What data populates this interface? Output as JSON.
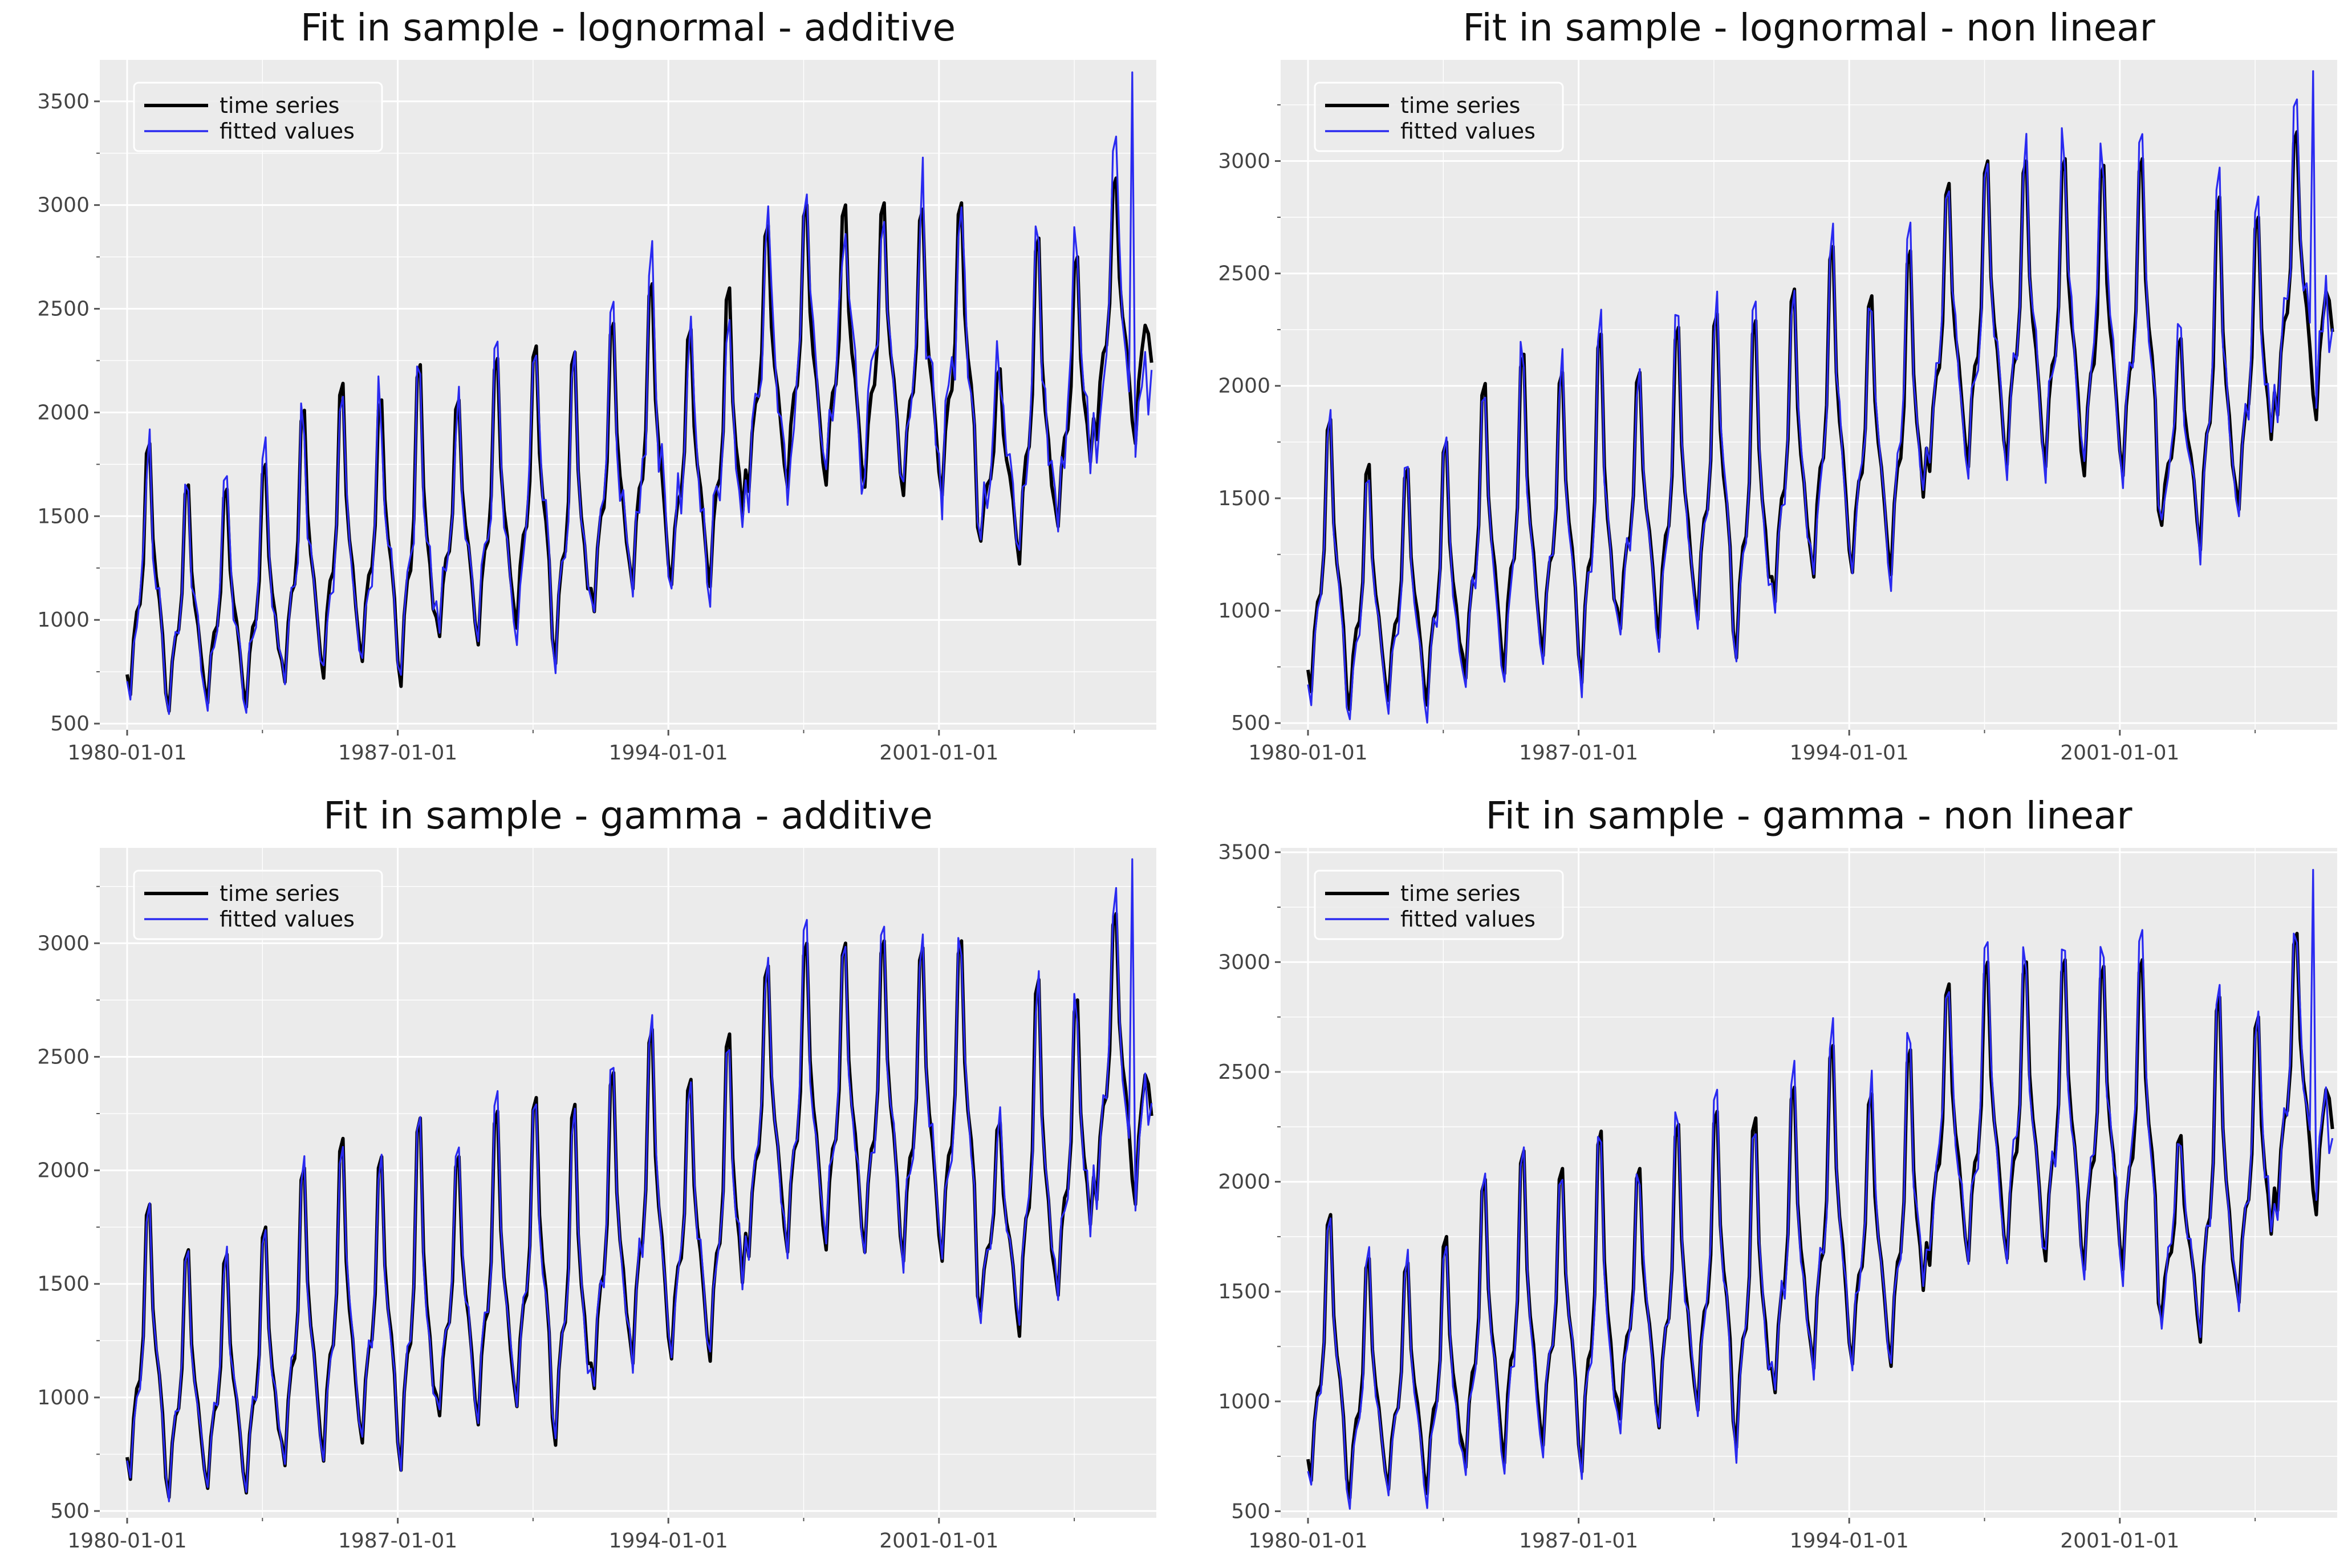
{
  "figure_meta": {
    "background": "#ffffff",
    "panel_background": "#ebebeb",
    "grid_color": "#ffffff",
    "colors": {
      "time_series": "#000000",
      "fitted_values": "#2a2af0"
    }
  },
  "legend": {
    "labels": [
      "time series",
      "fitted values"
    ],
    "placement": "top-left"
  },
  "chart_data": [
    {
      "type": "line",
      "title": "Fit in sample - lognormal - additive",
      "xlabel": "",
      "ylabel": "",
      "x_start": "1980-01",
      "frequency": "monthly",
      "x_tick_labels": [
        "1980-01-01",
        "1987-01-01",
        "1994-01-01",
        "2001-01-01"
      ],
      "y_tick_labels": [
        "500",
        "1000",
        "1500",
        "2000",
        "2500",
        "3000",
        "3500"
      ],
      "ylim": [
        470,
        3700
      ],
      "grid": true,
      "legend_placement": "top-left",
      "series": [
        {
          "name": "time series"
        },
        {
          "name": "fitted values"
        }
      ],
      "fit": {
        "noise": 0.085,
        "seed": 11,
        "amp": 1.0,
        "late_spike": [
          3640,
          1990
        ]
      }
    },
    {
      "type": "line",
      "title": "Fit in sample - lognormal - non linear",
      "xlabel": "",
      "ylabel": "",
      "x_start": "1980-01",
      "frequency": "monthly",
      "x_tick_labels": [
        "1980-01-01",
        "1987-01-01",
        "1994-01-01",
        "2001-01-01"
      ],
      "y_tick_labels": [
        "500",
        "1000",
        "1500",
        "2000",
        "2500",
        "3000"
      ],
      "ylim": [
        470,
        3450
      ],
      "grid": true,
      "legend_placement": "top-left",
      "series": [
        {
          "name": "time series"
        },
        {
          "name": "fitted values"
        }
      ],
      "fit": {
        "noise": 0.045,
        "seed": 23,
        "amp": 1.05,
        "late_spike": [
          3400,
          2150
        ]
      }
    },
    {
      "type": "line",
      "title": "Fit in sample - gamma - additive",
      "xlabel": "",
      "ylabel": "",
      "x_start": "1980-01",
      "frequency": "monthly",
      "x_tick_labels": [
        "1980-01-01",
        "1987-01-01",
        "1994-01-01",
        "2001-01-01"
      ],
      "y_tick_labels": [
        "500",
        "1000",
        "1500",
        "2000",
        "2500",
        "3000"
      ],
      "ylim": [
        470,
        3420
      ],
      "grid": true,
      "legend_placement": "top-left",
      "series": [
        {
          "name": "time series"
        },
        {
          "name": "fitted values"
        }
      ],
      "fit": {
        "noise": 0.04,
        "seed": 37,
        "amp": 1.0,
        "late_spike": [
          3370,
          2200
        ]
      }
    },
    {
      "type": "line",
      "title": "Fit in sample - gamma - non linear",
      "xlabel": "",
      "ylabel": "",
      "x_start": "1980-01",
      "frequency": "monthly",
      "x_tick_labels": [
        "1980-01-01",
        "1987-01-01",
        "1994-01-01",
        "2001-01-01"
      ],
      "y_tick_labels": [
        "500",
        "1000",
        "1500",
        "2000",
        "2500",
        "3000",
        "3500"
      ],
      "ylim": [
        470,
        3520
      ],
      "grid": true,
      "legend_placement": "top-left",
      "series": [
        {
          "name": "time series"
        },
        {
          "name": "fitted values"
        }
      ],
      "fit": {
        "noise": 0.045,
        "seed": 51,
        "amp": 1.04,
        "late_spike": [
          3420,
          2130
        ]
      }
    }
  ],
  "time_series_data": {
    "start": "1980-01",
    "frequency": "monthly",
    "annual_anchors": [
      {
        "year": 1980,
        "trough": 640,
        "peak": 1850
      },
      {
        "year": 1981,
        "trough": 560,
        "peak": 1650
      },
      {
        "year": 1982,
        "trough": 600,
        "peak": 1630
      },
      {
        "year": 1983,
        "trough": 580,
        "peak": 1750
      },
      {
        "year": 1984,
        "trough": 700,
        "peak": 2010
      },
      {
        "year": 1985,
        "trough": 720,
        "peak": 2140
      },
      {
        "year": 1986,
        "trough": 800,
        "peak": 2060
      },
      {
        "year": 1987,
        "trough": 680,
        "peak": 2230
      },
      {
        "year": 1988,
        "trough": 920,
        "peak": 2060
      },
      {
        "year": 1989,
        "trough": 880,
        "peak": 2260
      },
      {
        "year": 1990,
        "trough": 960,
        "peak": 2320
      },
      {
        "year": 1991,
        "trough": 790,
        "peak": 2290
      },
      {
        "year": 1992,
        "trough": 1040,
        "peak": 2430
      },
      {
        "year": 1993,
        "trough": 1150,
        "peak": 2620
      },
      {
        "year": 1994,
        "trough": 1170,
        "peak": 2400
      },
      {
        "year": 1995,
        "trough": 1160,
        "peak": 2600
      },
      {
        "year": 1996,
        "trough": 1620,
        "peak": 2900
      },
      {
        "year": 1997,
        "trough": 1640,
        "peak": 3000
      },
      {
        "year": 1998,
        "trough": 1650,
        "peak": 3000
      },
      {
        "year": 1999,
        "trough": 1640,
        "peak": 3010
      },
      {
        "year": 2000,
        "trough": 1600,
        "peak": 2980
      },
      {
        "year": 2001,
        "trough": 1600,
        "peak": 3010
      },
      {
        "year": 2002,
        "trough": 1380,
        "peak": 2210
      },
      {
        "year": 2003,
        "trough": 1270,
        "peak": 2840
      },
      {
        "year": 2004,
        "trough": 1450,
        "peak": 2750
      },
      {
        "year": 2005,
        "trough": 1870,
        "peak": 3130
      },
      {
        "year": 2006,
        "trough": 1850,
        "peak": 3210
      }
    ],
    "seasonal_profile": [
      0.08,
      0.0,
      0.22,
      0.33,
      0.36,
      0.52,
      0.96,
      1.0,
      0.62,
      0.47,
      0.38,
      0.24
    ],
    "end_value": 2240
  }
}
